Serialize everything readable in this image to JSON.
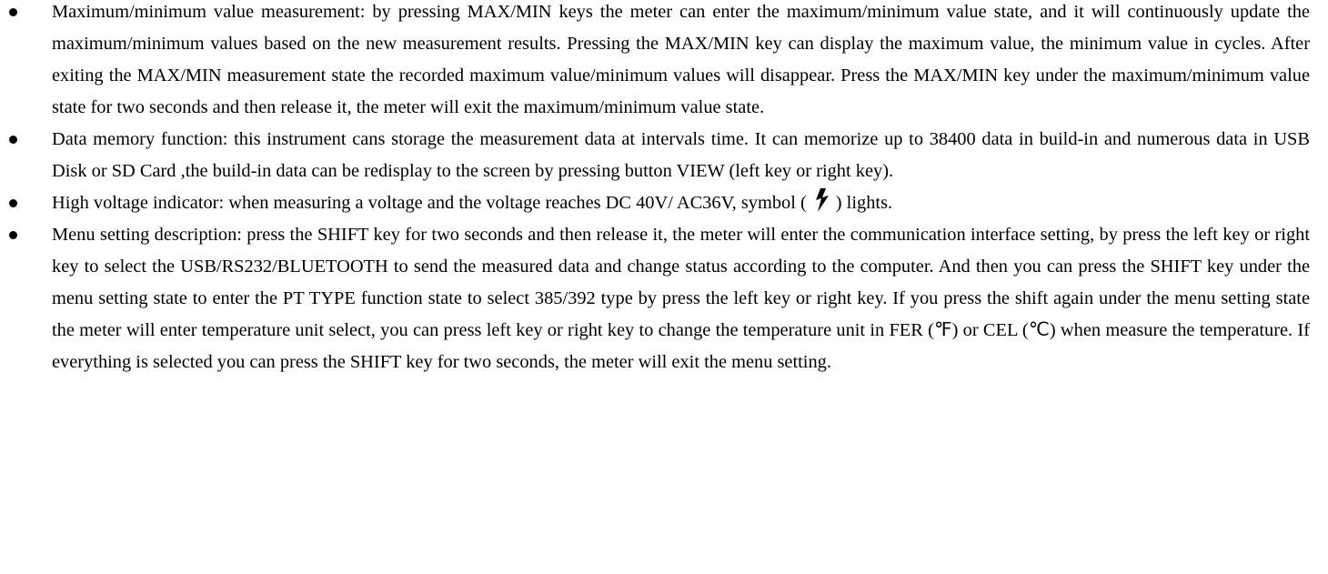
{
  "items": [
    "Maximum/minimum value measurement: by pressing MAX/MIN keys the meter can enter the maximum/minimum value state, and it will continuously update the maximum/minimum values based on the new measurement results. Pressing the MAX/MIN key can display the maximum value, the minimum value in cycles. After exiting the MAX/MIN measurement state the recorded maximum value/minimum values will disappear. Press the MAX/MIN key under the maximum/minimum value state for two seconds and then release it, the meter will exit the maximum/minimum value state.",
    "Data memory function: this instrument cans storage the measurement data at intervals time. It can memorize up to 38400 data in build-in and numerous data in USB Disk or SD Card ,the build-in data can be redisplay to the screen by pressing button VIEW (left key or right key).",
    {
      "before": "High voltage indicator: when measuring a voltage and the voltage reaches DC 40V/ AC36V, symbol (",
      "after": ") lights."
    },
    "Menu setting description: press the SHIFT key for two seconds and then release it, the meter will enter the communication interface setting, by press the left key or right key to select the USB/RS232/BLUETOOTH to send the measured data and change status according to the computer. And then you can press the SHIFT key under the menu setting state to enter the PT TYPE function state to select 385/392 type by press the left key or right key. If you press the shift again under the menu setting state the meter will enter temperature unit select, you can press left key or right key to change the temperature unit in FER (℉) or CEL (℃) when measure the temperature. If everything is selected you can press the SHIFT key for two seconds, the meter will exit the menu setting."
  ]
}
